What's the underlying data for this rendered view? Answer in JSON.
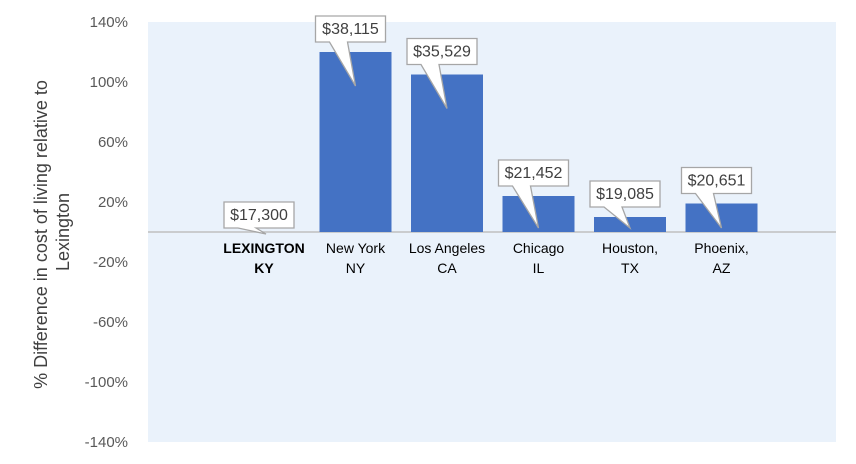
{
  "chart_data": {
    "type": "bar",
    "ylabel_lines": [
      "% Difference in cost of living relative to",
      "Lexington"
    ],
    "ylim": [
      -140,
      140
    ],
    "yticks": [
      140,
      100,
      60,
      20,
      -20,
      -60,
      -100,
      -140
    ],
    "ytick_labels": [
      "140%",
      "100%",
      "60%",
      "20%",
      "-20%",
      "-60%",
      "-100%",
      "-140%"
    ],
    "categories": [
      {
        "lines": [
          "LEXINGTON",
          "KY"
        ],
        "bold": true
      },
      {
        "lines": [
          "New York",
          "NY"
        ],
        "bold": false
      },
      {
        "lines": [
          "Los Angeles",
          "CA"
        ],
        "bold": false
      },
      {
        "lines": [
          "Chicago",
          "IL"
        ],
        "bold": false
      },
      {
        "lines": [
          "Houston,",
          "TX"
        ],
        "bold": false
      },
      {
        "lines": [
          "Phoenix,",
          "AZ"
        ],
        "bold": false
      }
    ],
    "values": [
      0,
      120,
      105,
      24,
      10,
      19
    ],
    "data_labels": [
      "$17,300",
      "$38,115",
      "$35,529",
      "$21,452",
      "$19,085",
      "$20,651"
    ],
    "grid": false,
    "colors": {
      "bar": "#4472C4",
      "plot_background": "#EAF2FB",
      "axis": "#BFBFBF",
      "callout_border": "#A6A6A6",
      "callout_fill": "#FFFFFF"
    }
  }
}
